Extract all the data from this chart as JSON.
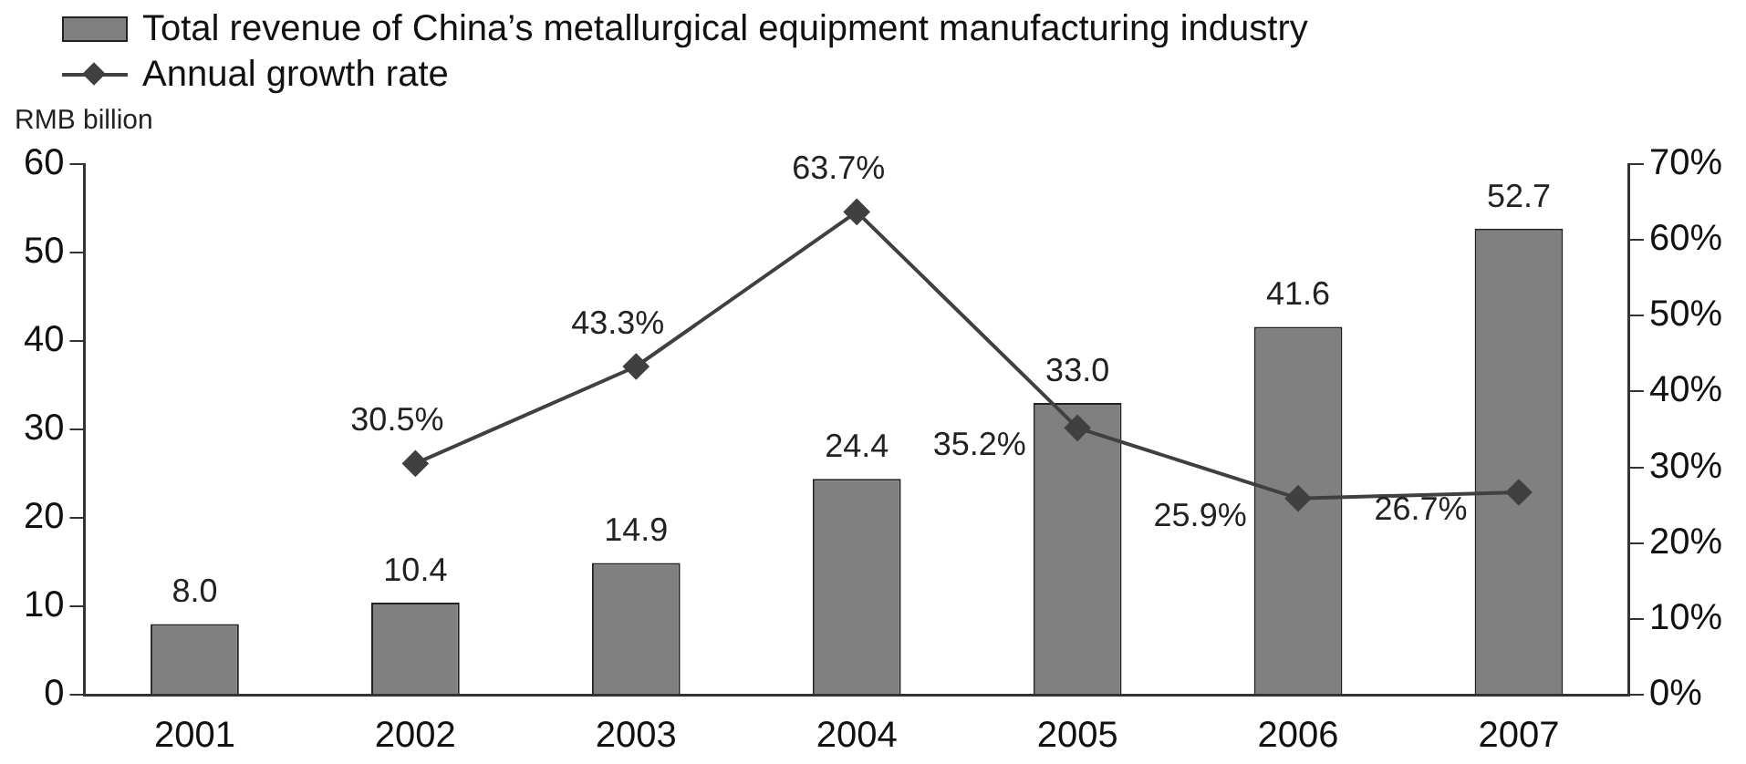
{
  "chart_data": {
    "type": "bar",
    "ylabel": "RMB billion",
    "categories": [
      "2001",
      "2002",
      "2003",
      "2004",
      "2005",
      "2006",
      "2007"
    ],
    "series": [
      {
        "name": "Total revenue of China’s metallurgical equipment manufacturing industry",
        "color": "#808080",
        "values": [
          8.0,
          10.4,
          14.9,
          24.4,
          33.0,
          41.6,
          52.7
        ],
        "value_labels": [
          "8.0",
          "10.4",
          "14.9",
          "24.4",
          "33.0",
          "41.6",
          "52.7"
        ]
      },
      {
        "name": "Annual growth rate",
        "type": "line",
        "axis": "y2",
        "color": "#404040",
        "marker": "diamond",
        "values": [
          null,
          30.5,
          43.3,
          63.7,
          35.2,
          25.9,
          26.7
        ],
        "value_labels": [
          null,
          "30.5%",
          "43.3%",
          "63.7%",
          "35.2%",
          "25.9%",
          "26.7%"
        ]
      }
    ],
    "ylim": [
      0,
      60
    ],
    "yticks": [
      0,
      10,
      20,
      30,
      40,
      50,
      60
    ],
    "y2lim": [
      0,
      70
    ],
    "y2ticks": [
      {
        "value": 0,
        "label": "0%"
      },
      {
        "value": 10,
        "label": "10%"
      },
      {
        "value": 20,
        "label": "20%"
      },
      {
        "value": 30,
        "label": "30%"
      },
      {
        "value": 40,
        "label": "40%"
      },
      {
        "value": 50,
        "label": "50%"
      },
      {
        "value": 60,
        "label": "60%"
      },
      {
        "value": 70,
        "label": "70%"
      }
    ],
    "grid": false,
    "legend": "top left"
  }
}
